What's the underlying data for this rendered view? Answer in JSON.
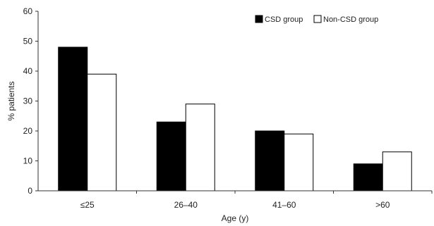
{
  "chart_data": {
    "type": "bar",
    "categories": [
      "≤25",
      "26–40",
      "41–60",
      ">60"
    ],
    "series": [
      {
        "name": "CSD group",
        "values": [
          48,
          23,
          20,
          9
        ],
        "color": "#000000"
      },
      {
        "name": "Non-CSD group",
        "values": [
          39,
          29,
          19,
          13
        ],
        "color": "#ffffff"
      }
    ],
    "title": "",
    "xlabel": "Age (y)",
    "ylabel": "% patients",
    "ylim": [
      0,
      60
    ],
    "yticks": [
      "0",
      "10",
      "20",
      "30",
      "40",
      "50",
      "60"
    ],
    "grid": false,
    "legend_position": "top-right"
  }
}
